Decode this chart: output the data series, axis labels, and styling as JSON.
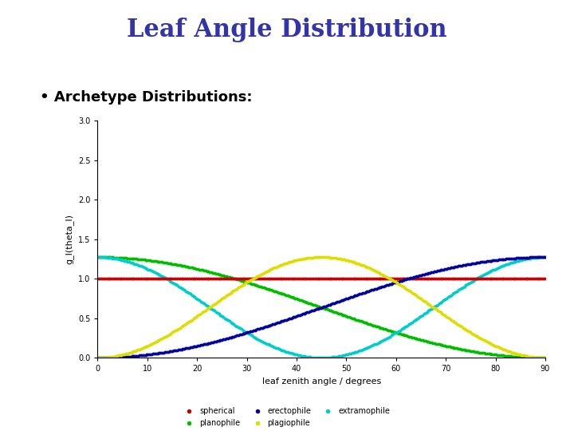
{
  "title": "Leaf Angle Distribution",
  "subtitle": "• Archetype Distributions:",
  "xlabel": "leaf zenith angle / degrees",
  "ylabel": "g_l(theta_l)",
  "xlim": [
    0,
    90
  ],
  "ylim": [
    0.0,
    3.0
  ],
  "xticks": [
    0,
    10,
    20,
    30,
    40,
    50,
    60,
    70,
    80,
    90
  ],
  "yticks": [
    0.0,
    0.5,
    1.0,
    1.5,
    2.0,
    2.5,
    3.0
  ],
  "title_color": "#3333aa",
  "title_fontsize": 22,
  "subtitle_fontsize": 13,
  "axis_label_fontsize": 8,
  "tick_fontsize": 7,
  "legend_fontsize": 7,
  "colors": {
    "spherical": "#cc0000",
    "planophile": "#00bb00",
    "erectophile": "#000099",
    "plagiophile": "#dddd00",
    "extramophile": "#00cccc"
  },
  "background": "#ffffff"
}
